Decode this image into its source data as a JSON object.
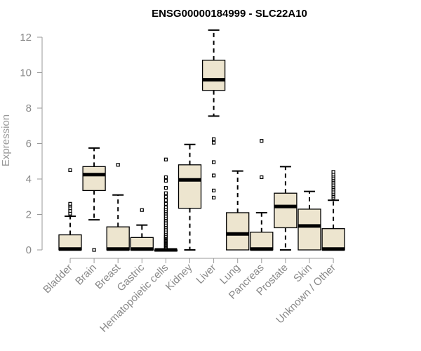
{
  "chart_data": {
    "type": "boxplot",
    "title": "ENSG00000184999 - SLC22A10",
    "ylabel": "Expression",
    "xlabel": "",
    "ylim": [
      0,
      12.4
    ],
    "yticks": [
      0,
      2,
      4,
      6,
      8,
      10,
      12
    ],
    "grid": false,
    "colors": {
      "box_fill": "#ede5cf",
      "stroke": "#000000",
      "axis": "#999999",
      "tick_label": "#888888",
      "title": "#000000"
    },
    "categories": [
      "Bladder",
      "Brain",
      "Breast",
      "Gastric",
      "Hematopoietic cells",
      "Kidney",
      "Liver",
      "Lung",
      "Pancreas",
      "Prostate",
      "Skin",
      "Unknown / Other"
    ],
    "boxes": [
      {
        "category": "Bladder",
        "whisker_low": 0,
        "q1": 0,
        "median": 0.05,
        "q3": 0.85,
        "whisker_high": 1.9,
        "outliers": [
          2.05,
          2.2,
          2.35,
          2.5,
          2.6,
          4.5
        ]
      },
      {
        "category": "Brain",
        "whisker_low": 1.7,
        "q1": 3.35,
        "median": 4.25,
        "q3": 4.7,
        "whisker_high": 5.75,
        "outliers": [
          0.0
        ]
      },
      {
        "category": "Breast",
        "whisker_low": 0,
        "q1": 0,
        "median": 0.05,
        "q3": 1.3,
        "whisker_high": 3.1,
        "outliers": [
          4.8
        ]
      },
      {
        "category": "Gastric",
        "whisker_low": 0,
        "q1": 0,
        "median": 0.05,
        "q3": 0.7,
        "whisker_high": 1.4,
        "outliers": [
          2.25
        ]
      },
      {
        "category": "Hematopoietic cells",
        "whisker_low": 0,
        "q1": 0,
        "median": 0.0,
        "q3": 0.0,
        "whisker_high": 0.0,
        "outliers": [
          0.1,
          0.15,
          0.2,
          0.25,
          0.3,
          0.35,
          0.4,
          0.45,
          0.5,
          0.55,
          0.6,
          0.65,
          0.7,
          0.75,
          0.8,
          0.9,
          1.0,
          1.1,
          1.2,
          1.3,
          1.4,
          1.5,
          1.6,
          1.7,
          1.8,
          1.9,
          2.0,
          2.1,
          2.2,
          2.3,
          2.4,
          2.6,
          2.8,
          3.0,
          3.2,
          3.5,
          3.9,
          4.1,
          5.1
        ]
      },
      {
        "category": "Kidney",
        "whisker_low": 0,
        "q1": 2.35,
        "median": 3.95,
        "q3": 4.8,
        "whisker_high": 5.95,
        "outliers": []
      },
      {
        "category": "Liver",
        "whisker_low": 7.55,
        "q1": 9.0,
        "median": 9.6,
        "q3": 10.7,
        "whisker_high": 12.4,
        "outliers": [
          2.95,
          3.35,
          4.2,
          4.95,
          6.05,
          6.25
        ]
      },
      {
        "category": "Lung",
        "whisker_low": 0,
        "q1": 0,
        "median": 0.9,
        "q3": 2.1,
        "whisker_high": 4.45,
        "outliers": []
      },
      {
        "category": "Pancreas",
        "whisker_low": 0,
        "q1": 0,
        "median": 0.05,
        "q3": 1.0,
        "whisker_high": 2.1,
        "outliers": [
          4.1,
          6.15
        ]
      },
      {
        "category": "Prostate",
        "whisker_low": 0,
        "q1": 1.25,
        "median": 2.45,
        "q3": 3.2,
        "whisker_high": 4.7,
        "outliers": []
      },
      {
        "category": "Skin",
        "whisker_low": 0,
        "q1": 0,
        "median": 1.35,
        "q3": 2.3,
        "whisker_high": 3.3,
        "outliers": []
      },
      {
        "category": "Unknown / Other",
        "whisker_low": 0,
        "q1": 0,
        "median": 0.05,
        "q3": 1.2,
        "whisker_high": 2.8,
        "outliers": [
          2.95,
          3.05,
          3.15,
          3.25,
          3.35,
          3.45,
          3.55,
          3.65,
          3.75,
          3.85,
          3.95,
          4.05,
          4.15,
          4.25,
          4.4
        ]
      }
    ]
  }
}
